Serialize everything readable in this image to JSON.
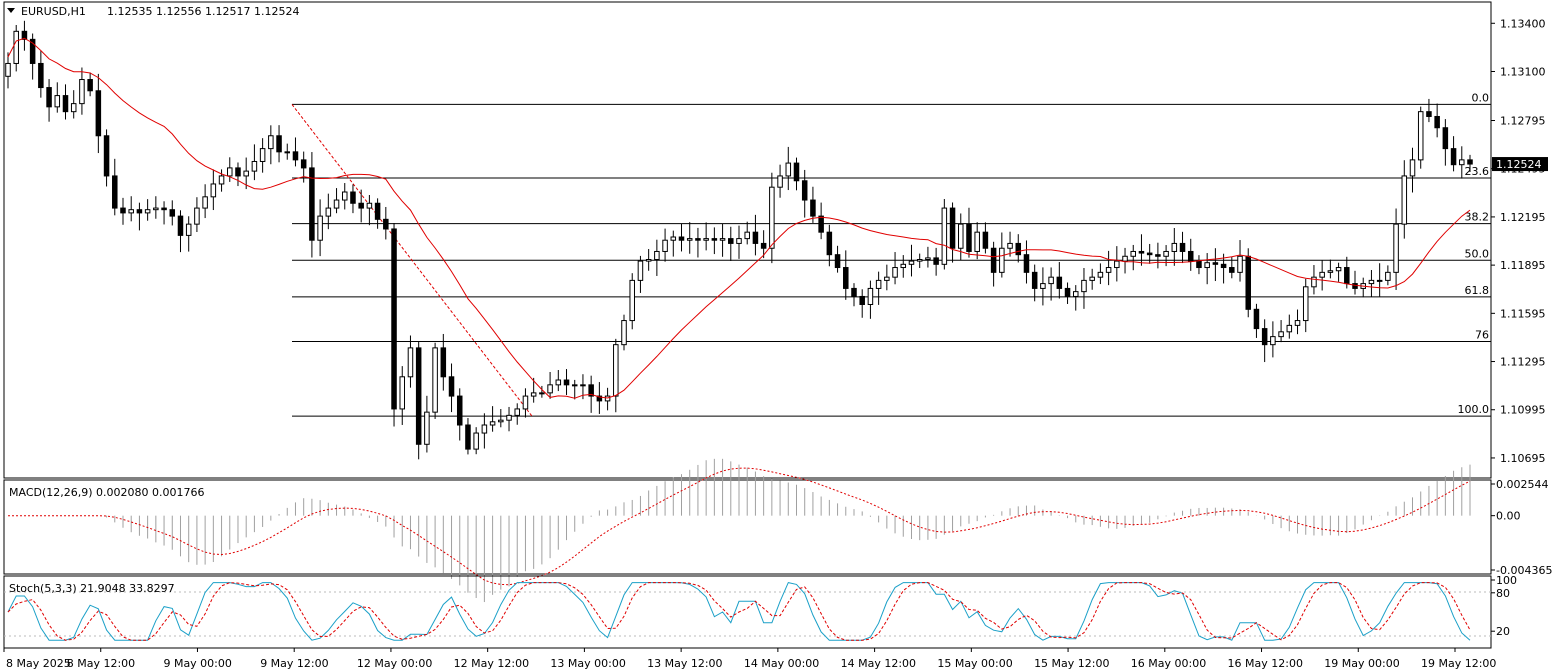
{
  "colors": {
    "background": "#ffffff",
    "frame": "#000000",
    "candle_up": "#ffffff",
    "candle_down": "#000000",
    "ma_line": "#e00000",
    "fib_line": "#000000",
    "fib_trend": "#e00000",
    "macd_hist": "#a0a0a0",
    "macd_signal": "#e00000",
    "stoch_main": "#1ba0c8",
    "stoch_signal": "#e00000",
    "price_label_bg": "#000000",
    "price_label_text": "#ffffff"
  },
  "main_panel": {
    "header": {
      "triangle_icon": "triangle-down-icon",
      "symbol": "EURUSD,H1",
      "ohlc": "1.12535 1.12556 1.12517 1.12524"
    },
    "current_price": "1.12524",
    "y_ticks": [
      "1.13400",
      "1.13100",
      "1.12795",
      "1.12495",
      "1.12195",
      "1.11895",
      "1.11595",
      "1.11295",
      "1.10995",
      "1.10695"
    ],
    "fib_levels": [
      {
        "label": "0.0",
        "price": 1.12895
      },
      {
        "label": "23.6",
        "price": 1.12437
      },
      {
        "label": "38.2",
        "price": 1.12153
      },
      {
        "label": "50.0",
        "price": 1.11925
      },
      {
        "label": "61.8",
        "price": 1.11697
      },
      {
        "label": "76",
        "price": 1.1142
      },
      {
        "label": "100.0",
        "price": 1.10955
      }
    ]
  },
  "macd_panel": {
    "label": "MACD(12,26,9) 0.002080 0.001766",
    "y_ticks": [
      "0.002544",
      "0.00",
      "-0.004365"
    ]
  },
  "stoch_panel": {
    "label": "Stoch(5,3,3) 21.9048 33.8297",
    "y_ticks": [
      "100",
      "80",
      "20"
    ]
  },
  "x_axis": {
    "labels": [
      "8 May 2025",
      "8 May 12:00",
      "9 May 00:00",
      "9 May 12:00",
      "12 May 00:00",
      "12 May 12:00",
      "13 May 00:00",
      "13 May 12:00",
      "14 May 00:00",
      "14 May 12:00",
      "15 May 00:00",
      "15 May 12:00",
      "16 May 00:00",
      "16 May 12:00",
      "19 May 00:00",
      "19 May 12:00"
    ]
  },
  "chart_data": {
    "type": "candlestick",
    "symbol": "EURUSD",
    "timeframe": "H1",
    "ylim": [
      1.1062,
      1.1352
    ],
    "anchors": [
      {
        "c": 1.1315
      },
      {
        "c": 1.1335
      },
      {
        "c": 1.133
      },
      {
        "c": 1.1315
      },
      {
        "c": 1.13
      },
      {
        "c": 1.1288
      },
      {
        "c": 1.1295
      },
      {
        "c": 1.1285
      },
      {
        "c": 1.129
      },
      {
        "c": 1.1305
      },
      {
        "c": 1.1298
      },
      {
        "c": 1.127
      },
      {
        "c": 1.1245
      },
      {
        "c": 1.1225
      },
      {
        "c": 1.1222
      },
      {
        "c": 1.1224
      },
      {
        "c": 1.1222
      },
      {
        "c": 1.1224
      },
      {
        "c": 1.1225
      },
      {
        "c": 1.1224
      },
      {
        "c": 1.122
      },
      {
        "c": 1.1208
      },
      {
        "c": 1.1215
      },
      {
        "c": 1.1225
      },
      {
        "c": 1.1232
      },
      {
        "c": 1.124
      },
      {
        "c": 1.1245
      },
      {
        "c": 1.125
      },
      {
        "c": 1.1245
      },
      {
        "c": 1.1248
      },
      {
        "c": 1.1254
      },
      {
        "c": 1.1262
      },
      {
        "c": 1.127
      },
      {
        "c": 1.126
      },
      {
        "c": 1.126
      },
      {
        "c": 1.1255
      },
      {
        "c": 1.125
      },
      {
        "c": 1.1205
      },
      {
        "c": 1.122
      },
      {
        "c": 1.1225
      },
      {
        "c": 1.123
      },
      {
        "c": 1.1235
      },
      {
        "c": 1.1228
      },
      {
        "c": 1.1225
      },
      {
        "c": 1.1228
      },
      {
        "c": 1.1218
      },
      {
        "c": 1.1212
      },
      {
        "c": 1.11
      },
      {
        "c": 1.112
      },
      {
        "c": 1.1138
      },
      {
        "c": 1.1078
      },
      {
        "c": 1.1098
      },
      {
        "c": 1.1138
      },
      {
        "c": 1.112
      },
      {
        "c": 1.1108
      },
      {
        "c": 1.109
      },
      {
        "c": 1.1075
      },
      {
        "c": 1.1085
      },
      {
        "c": 1.109
      },
      {
        "c": 1.1092
      },
      {
        "c": 1.1093
      },
      {
        "c": 1.1096
      },
      {
        "c": 1.11
      },
      {
        "c": 1.1108
      },
      {
        "c": 1.111
      },
      {
        "c": 1.111
      },
      {
        "c": 1.1115
      },
      {
        "c": 1.1118
      },
      {
        "c": 1.1115
      },
      {
        "c": 1.1115
      },
      {
        "c": 1.1115
      },
      {
        "c": 1.1108
      },
      {
        "c": 1.1105
      },
      {
        "c": 1.1108
      },
      {
        "c": 1.114
      },
      {
        "c": 1.1155
      },
      {
        "c": 1.118
      },
      {
        "c": 1.1192
      },
      {
        "c": 1.1193
      },
      {
        "c": 1.1198
      },
      {
        "c": 1.1205
      },
      {
        "c": 1.1207
      },
      {
        "c": 1.1205
      },
      {
        "c": 1.1206
      },
      {
        "c": 1.1205
      },
      {
        "c": 1.1206
      },
      {
        "c": 1.1205
      },
      {
        "c": 1.1206
      },
      {
        "c": 1.1203
      },
      {
        "c": 1.1206
      },
      {
        "c": 1.121
      },
      {
        "c": 1.1203
      },
      {
        "c": 1.12
      },
      {
        "c": 1.1238
      },
      {
        "c": 1.1245
      },
      {
        "c": 1.1253
      },
      {
        "c": 1.1242
      },
      {
        "c": 1.123
      },
      {
        "c": 1.122
      },
      {
        "c": 1.121
      },
      {
        "c": 1.1196
      },
      {
        "c": 1.1188
      },
      {
        "c": 1.1175
      },
      {
        "c": 1.117
      },
      {
        "c": 1.1165
      },
      {
        "c": 1.1175
      },
      {
        "c": 1.118
      },
      {
        "c": 1.1182
      },
      {
        "c": 1.1188
      },
      {
        "c": 1.119
      },
      {
        "c": 1.1192
      },
      {
        "c": 1.1193
      },
      {
        "c": 1.1194
      },
      {
        "c": 1.119
      },
      {
        "c": 1.1225
      },
      {
        "c": 1.12
      },
      {
        "c": 1.1215
      },
      {
        "c": 1.1198
      },
      {
        "c": 1.121
      },
      {
        "c": 1.12
      },
      {
        "c": 1.1185
      },
      {
        "c": 1.12
      },
      {
        "c": 1.1203
      },
      {
        "c": 1.1196
      },
      {
        "c": 1.1185
      },
      {
        "c": 1.1175
      },
      {
        "c": 1.1178
      },
      {
        "c": 1.1182
      },
      {
        "c": 1.1175
      },
      {
        "c": 1.117
      },
      {
        "c": 1.1173
      },
      {
        "c": 1.118
      },
      {
        "c": 1.1182
      },
      {
        "c": 1.1185
      },
      {
        "c": 1.1188
      },
      {
        "c": 1.1192
      },
      {
        "c": 1.1195
      },
      {
        "c": 1.1198
      },
      {
        "c": 1.1197
      },
      {
        "c": 1.1196
      },
      {
        "c": 1.1195
      },
      {
        "c": 1.1198
      },
      {
        "c": 1.1203
      },
      {
        "c": 1.1198
      },
      {
        "c": 1.1192
      },
      {
        "c": 1.1188
      },
      {
        "c": 1.1191
      },
      {
        "c": 1.119
      },
      {
        "c": 1.1188
      },
      {
        "c": 1.1185
      },
      {
        "c": 1.1195
      },
      {
        "c": 1.1162
      },
      {
        "c": 1.115
      },
      {
        "c": 1.114
      },
      {
        "c": 1.1145
      },
      {
        "c": 1.1148
      },
      {
        "c": 1.1152
      },
      {
        "c": 1.1155
      },
      {
        "c": 1.1176
      },
      {
        "c": 1.1182
      },
      {
        "c": 1.1185
      },
      {
        "c": 1.1186
      },
      {
        "c": 1.1188
      },
      {
        "c": 1.1178
      },
      {
        "c": 1.1175
      },
      {
        "c": 1.1178
      },
      {
        "c": 1.118
      },
      {
        "c": 1.118
      },
      {
        "c": 1.1185
      },
      {
        "c": 1.1215
      },
      {
        "c": 1.1245
      },
      {
        "c": 1.1255
      },
      {
        "c": 1.1285
      },
      {
        "c": 1.1282
      },
      {
        "c": 1.1275
      },
      {
        "c": 1.1262
      },
      {
        "c": 1.1252
      },
      {
        "c": 1.1255
      },
      {
        "c": 1.12524
      }
    ]
  }
}
